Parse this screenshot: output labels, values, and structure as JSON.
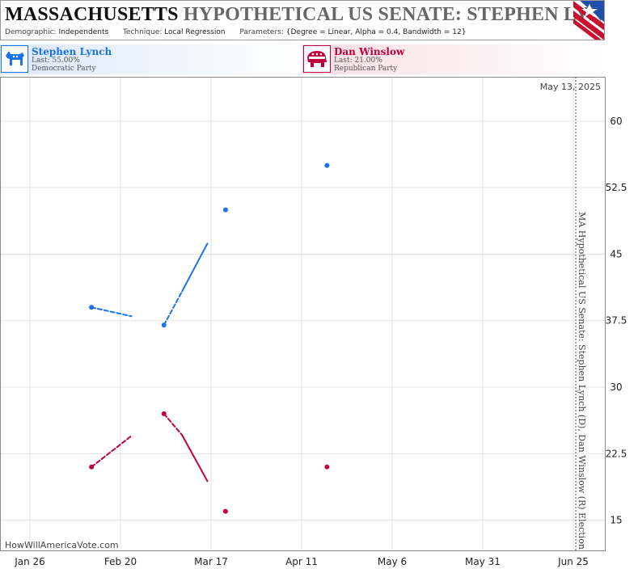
{
  "header": {
    "title_state": "MASSACHUSETTS",
    "title_rest": "HYPOTHETICAL US SENATE: STEPHEN LYNCH",
    "demographic_label": "Demographic:",
    "demographic_value": "Independents",
    "technique_label": "Technique:",
    "technique_value": "Local Regression",
    "parameters_label": "Parameters:",
    "parameters_value": "{Degree = Linear, Alpha = 0.4, Bandwidth = 12}"
  },
  "candidates": [
    {
      "name": "Stephen Lynch",
      "last": "Last: 55.00%",
      "party": "Democratic Party",
      "color": "#1a73e8",
      "logo": "democratic-donkey-icon"
    },
    {
      "name": "Dan Winslow",
      "last": "Last: 21.00%",
      "party": "Republican Party",
      "color": "#c0003c",
      "logo": "republican-elephant-icon"
    }
  ],
  "plot": {
    "date_label": "May 13, 2025",
    "side_label": "MA Hypothetical US Senate: Stephen Lynch (D), Dan Winslow (R) Election",
    "watermark": "HowWillAmericaVote.com"
  },
  "chart_data": {
    "type": "scatter",
    "x_ticks": [
      "Jan 26",
      "Feb 20",
      "Mar 17",
      "Apr 11",
      "May 6",
      "May 31",
      "Jun 25"
    ],
    "y_ticks": [
      15,
      22.5,
      30,
      37.5,
      45,
      52.5,
      60
    ],
    "ylim": [
      11.5,
      65
    ],
    "grid": true,
    "series": [
      {
        "name": "Stephen Lynch",
        "color": "#1a73e8",
        "points": [
          {
            "x": "Feb 12",
            "y": 39
          },
          {
            "x": "Mar 4",
            "y": 37
          },
          {
            "x": "Mar 21",
            "y": 50
          },
          {
            "x": "Apr 18",
            "y": 55
          }
        ],
        "trend_segments": [
          {
            "from": {
              "x": "Feb 12",
              "y": 39
            },
            "to": {
              "x": "Feb 23",
              "y": 38
            },
            "style": "dashed"
          },
          {
            "from": {
              "x": "Mar 4",
              "y": 37
            },
            "to": {
              "x": "Mar 9",
              "y": 40.8
            },
            "style": "dashed"
          },
          {
            "from": {
              "x": "Mar 9",
              "y": 40.8
            },
            "to": {
              "x": "Mar 16",
              "y": 46.2
            },
            "style": "solid"
          }
        ]
      },
      {
        "name": "Dan Winslow",
        "color": "#c0003c",
        "points": [
          {
            "x": "Feb 12",
            "y": 21
          },
          {
            "x": "Mar 4",
            "y": 27
          },
          {
            "x": "Mar 21",
            "y": 16
          },
          {
            "x": "Apr 18",
            "y": 21
          }
        ],
        "trend_segments": [
          {
            "from": {
              "x": "Feb 12",
              "y": 21
            },
            "to": {
              "x": "Feb 23",
              "y": 24.5
            },
            "style": "dashed"
          },
          {
            "from": {
              "x": "Mar 4",
              "y": 27
            },
            "to": {
              "x": "Mar 9",
              "y": 24.6
            },
            "style": "dashed"
          },
          {
            "from": {
              "x": "Mar 9",
              "y": 24.6
            },
            "to": {
              "x": "Mar 16",
              "y": 19.4
            },
            "style": "solid"
          }
        ]
      }
    ]
  }
}
